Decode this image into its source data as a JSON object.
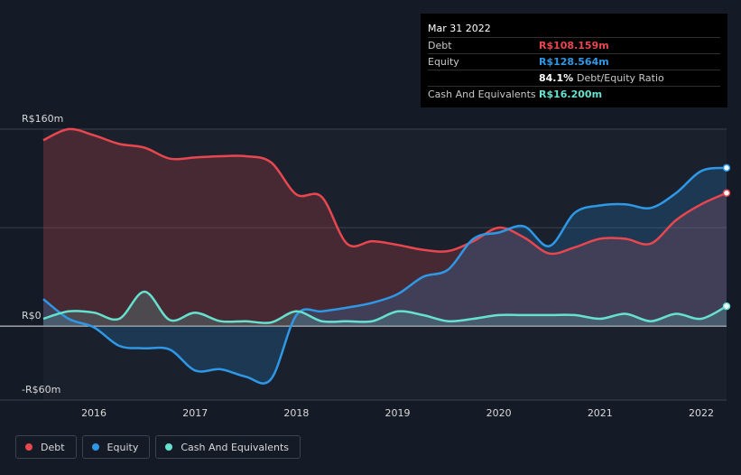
{
  "tooltip": {
    "date": "Mar 31 2022",
    "rows": [
      {
        "label": "Debt",
        "value": "R$108.159m",
        "color": "#e8474f"
      },
      {
        "label": "Equity",
        "value": "R$128.564m",
        "color": "#2f98e6"
      },
      {
        "label": "",
        "value": "84.1%",
        "note": "Debt/Equity Ratio",
        "color": "#ffffff"
      },
      {
        "label": "Cash And Equivalents",
        "value": "R$16.200m",
        "color": "#67e1cf"
      }
    ]
  },
  "legend": [
    {
      "label": "Debt",
      "color": "#e8474f"
    },
    {
      "label": "Equity",
      "color": "#2f98e6"
    },
    {
      "label": "Cash And Equivalents",
      "color": "#67e1cf"
    }
  ],
  "chart_data": {
    "type": "area",
    "title": "",
    "xlabel": "",
    "ylabel": "",
    "y_tick_labels": [
      "R$160m",
      "R$0",
      "-R$60m"
    ],
    "y_tick_values": [
      160,
      0,
      -60
    ],
    "ylim": [
      -60,
      160
    ],
    "xlim": [
      2015.5,
      2022.25
    ],
    "x_tick_labels": [
      "2016",
      "2017",
      "2018",
      "2019",
      "2020",
      "2021",
      "2022"
    ],
    "x_tick_values": [
      2016,
      2017,
      2018,
      2019,
      2020,
      2021,
      2022
    ],
    "series": [
      {
        "name": "Debt",
        "color": "#e8474f",
        "points": [
          [
            2015.5,
            151
          ],
          [
            2015.75,
            160
          ],
          [
            2016.0,
            155
          ],
          [
            2016.25,
            148
          ],
          [
            2016.5,
            145
          ],
          [
            2016.75,
            136
          ],
          [
            2017.0,
            137
          ],
          [
            2017.25,
            138
          ],
          [
            2017.5,
            138
          ],
          [
            2017.75,
            133
          ],
          [
            2018.0,
            107
          ],
          [
            2018.25,
            105
          ],
          [
            2018.5,
            67
          ],
          [
            2018.75,
            69
          ],
          [
            2019.0,
            66
          ],
          [
            2019.25,
            62
          ],
          [
            2019.5,
            61
          ],
          [
            2019.75,
            69
          ],
          [
            2020.0,
            80
          ],
          [
            2020.25,
            72
          ],
          [
            2020.5,
            59
          ],
          [
            2020.75,
            64
          ],
          [
            2021.0,
            71
          ],
          [
            2021.25,
            71
          ],
          [
            2021.5,
            67
          ],
          [
            2021.75,
            86
          ],
          [
            2022.0,
            99
          ],
          [
            2022.25,
            108.159
          ]
        ]
      },
      {
        "name": "Equity",
        "color": "#2f98e6",
        "points": [
          [
            2015.5,
            22
          ],
          [
            2015.75,
            6
          ],
          [
            2016.0,
            -1
          ],
          [
            2016.25,
            -16
          ],
          [
            2016.5,
            -18
          ],
          [
            2016.75,
            -19
          ],
          [
            2017.0,
            -36
          ],
          [
            2017.25,
            -35
          ],
          [
            2017.5,
            -41
          ],
          [
            2017.75,
            -43
          ],
          [
            2018.0,
            9
          ],
          [
            2018.25,
            12
          ],
          [
            2018.5,
            15
          ],
          [
            2018.75,
            19
          ],
          [
            2019.0,
            26
          ],
          [
            2019.25,
            40
          ],
          [
            2019.5,
            46
          ],
          [
            2019.75,
            71
          ],
          [
            2020.0,
            76
          ],
          [
            2020.25,
            81
          ],
          [
            2020.5,
            65
          ],
          [
            2020.75,
            92
          ],
          [
            2021.0,
            98
          ],
          [
            2021.25,
            99
          ],
          [
            2021.5,
            96
          ],
          [
            2021.75,
            108
          ],
          [
            2022.0,
            126
          ],
          [
            2022.25,
            128.564
          ]
        ]
      },
      {
        "name": "Cash And Equivalents",
        "color": "#67e1cf",
        "points": [
          [
            2015.5,
            6
          ],
          [
            2015.75,
            12
          ],
          [
            2016.0,
            11
          ],
          [
            2016.25,
            6
          ],
          [
            2016.5,
            28
          ],
          [
            2016.75,
            5
          ],
          [
            2017.0,
            11
          ],
          [
            2017.25,
            4
          ],
          [
            2017.5,
            4
          ],
          [
            2017.75,
            3
          ],
          [
            2018.0,
            12
          ],
          [
            2018.25,
            4
          ],
          [
            2018.5,
            4
          ],
          [
            2018.75,
            4
          ],
          [
            2019.0,
            12
          ],
          [
            2019.25,
            9
          ],
          [
            2019.5,
            4
          ],
          [
            2019.75,
            6
          ],
          [
            2020.0,
            9
          ],
          [
            2020.25,
            9
          ],
          [
            2020.5,
            9
          ],
          [
            2020.75,
            9
          ],
          [
            2021.0,
            6
          ],
          [
            2021.25,
            10
          ],
          [
            2021.5,
            4
          ],
          [
            2021.75,
            10
          ],
          [
            2022.0,
            6
          ],
          [
            2022.25,
            16.2
          ]
        ]
      }
    ]
  }
}
